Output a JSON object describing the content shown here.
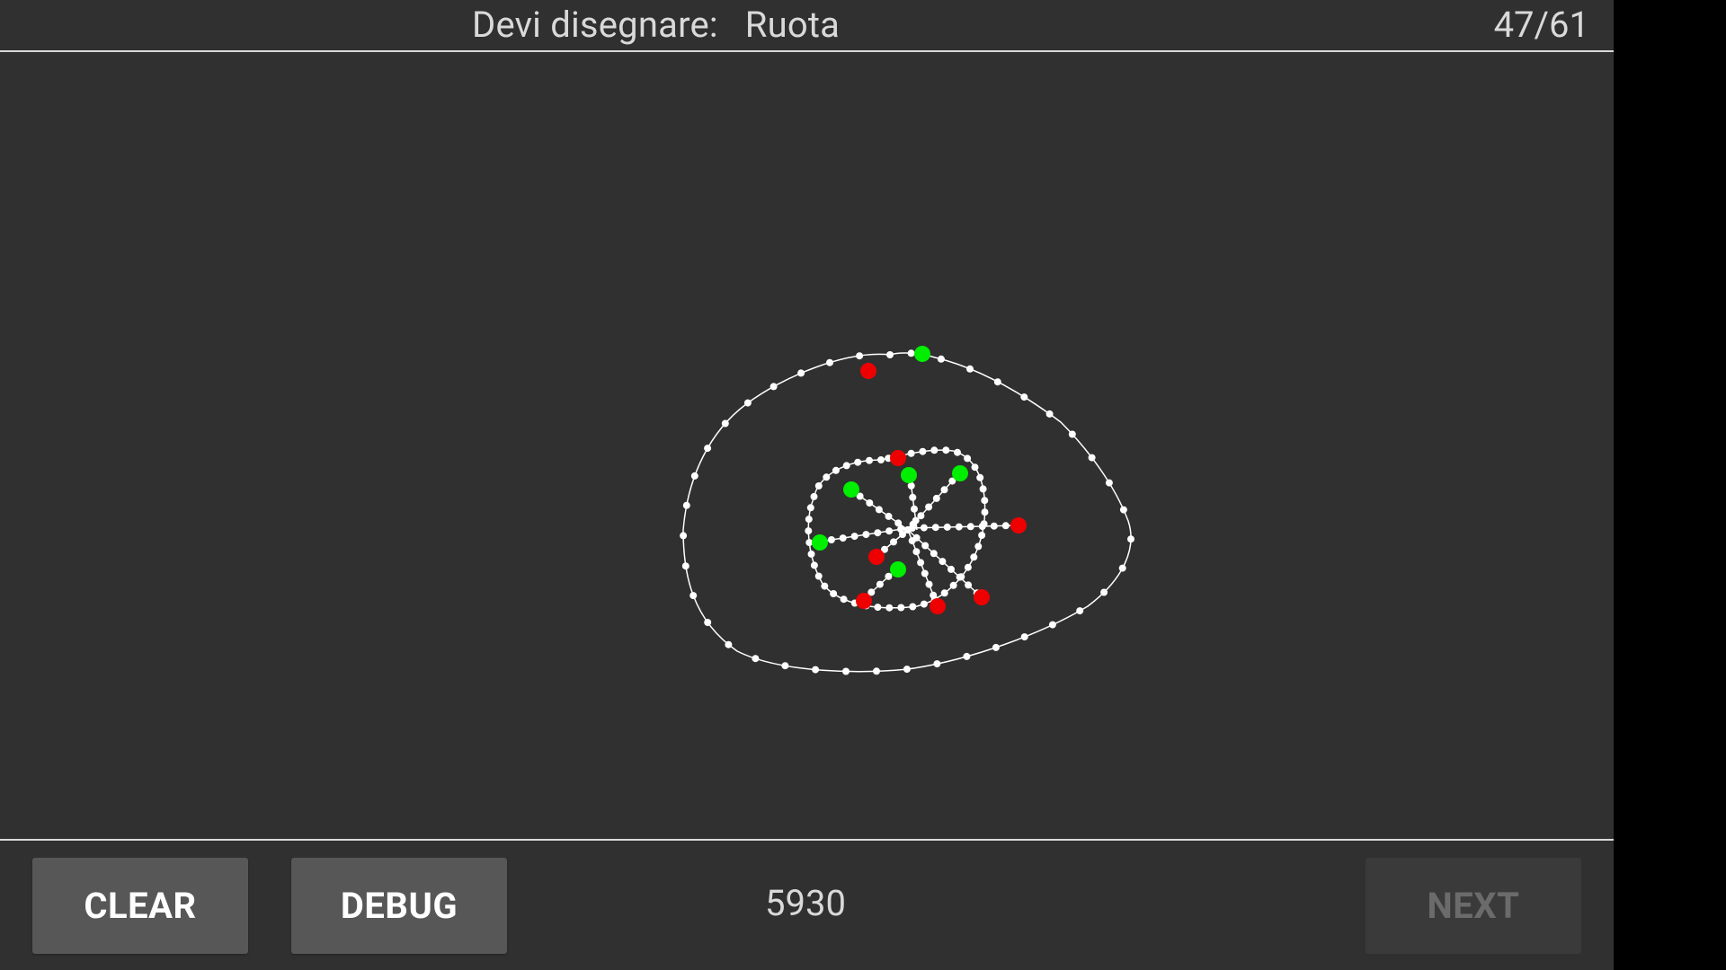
{
  "header": {
    "prompt_label": "Devi disegnare:",
    "prompt_word": "Ruota",
    "progress": "47/61"
  },
  "footer": {
    "clear_label": "CLEAR",
    "debug_label": "DEBUG",
    "score": "5930",
    "next_label": "NEXT"
  },
  "colors": {
    "background": "#303030",
    "text": "#d9d9d9",
    "stroke": "#ffffff",
    "start_marker": "#00ee00",
    "end_marker": "#ee0000"
  }
}
